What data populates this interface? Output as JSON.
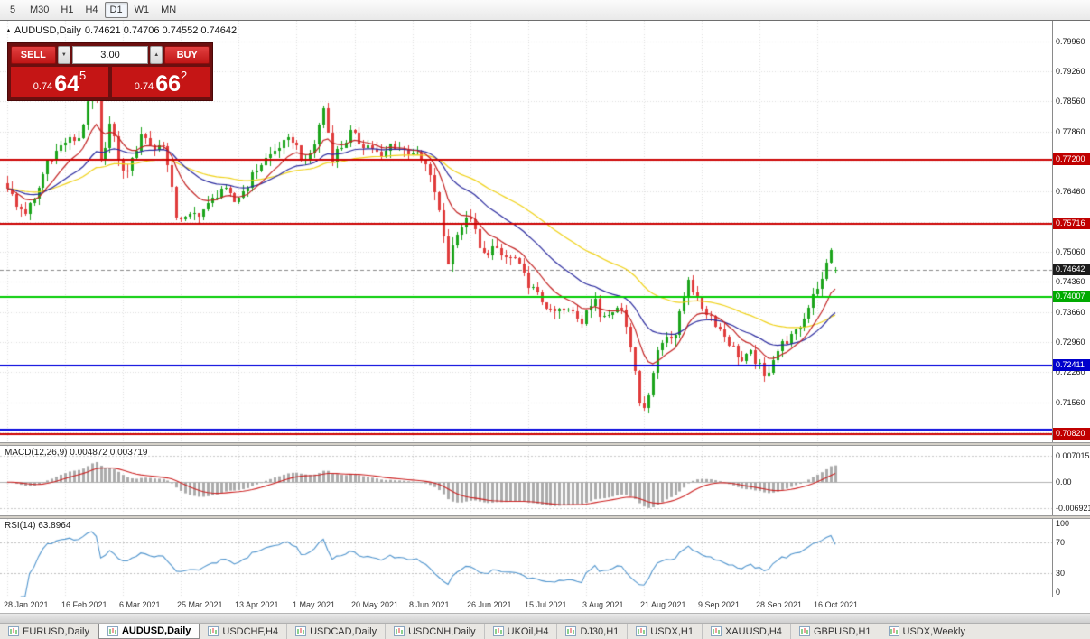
{
  "toolbar": {
    "timeframes": [
      {
        "label": "5",
        "active": false
      },
      {
        "label": "M30",
        "active": false
      },
      {
        "label": "H1",
        "active": false
      },
      {
        "label": "H4",
        "active": false
      },
      {
        "label": "D1",
        "active": true
      },
      {
        "label": "W1",
        "active": false
      },
      {
        "label": "MN",
        "active": false
      }
    ]
  },
  "icons": {
    "expand_triangle": "▲",
    "spinner_up": "▲",
    "spinner_down": "▼"
  },
  "chart_header": {
    "symbol": "AUDUSD,Daily",
    "ohlc": "0.74621 0.74706 0.74552 0.74642"
  },
  "trade_panel": {
    "sell_label": "SELL",
    "buy_label": "BUY",
    "volume": "3.00",
    "sell_price": {
      "small": "0.74",
      "big": "64",
      "sup": "5"
    },
    "buy_price": {
      "small": "0.74",
      "big": "66",
      "sup": "2"
    }
  },
  "price_scale": [
    "0.79960",
    "0.79260",
    "0.78560",
    "0.77860",
    "0.77160",
    "0.76460",
    "0.75760",
    "0.75060",
    "0.74360",
    "0.73660",
    "0.72960",
    "0.72260",
    "0.71560",
    "0.70860"
  ],
  "price_badges": [
    {
      "label": "0.77200",
      "value": 0.772,
      "color": "#c00000"
    },
    {
      "label": "0.75716",
      "value": 0.75716,
      "color": "#c00000"
    },
    {
      "label": "0.74642",
      "value": 0.74642,
      "color": "#1c1c1c"
    },
    {
      "label": "0.74007",
      "value": 0.74007,
      "color": "#00aa00"
    },
    {
      "label": "0.72411",
      "value": 0.72411,
      "color": "#0000cc"
    },
    {
      "label": "0.70820",
      "value": 0.7082,
      "color": "#c00000"
    }
  ],
  "macd": {
    "label": "MACD(12,26,9) 0.004872 0.003719",
    "scale": [
      {
        "label": "0.0070155",
        "value": 0.0070155
      },
      {
        "label": "0.00",
        "value": 0
      },
      {
        "label": "-0.0069210",
        "value": -0.006921
      }
    ]
  },
  "rsi": {
    "label": "RSI(14) 63.8964",
    "scale": [
      {
        "label": "100",
        "value": 100
      },
      {
        "label": "70",
        "value": 70
      },
      {
        "label": "30",
        "value": 30
      },
      {
        "label": "0",
        "value": 0
      }
    ]
  },
  "tabs": [
    {
      "label": "EURUSD,Daily",
      "active": false
    },
    {
      "label": "AUDUSD,Daily",
      "active": true
    },
    {
      "label": "USDCHF,H4",
      "active": false
    },
    {
      "label": "USDCAD,Daily",
      "active": false
    },
    {
      "label": "USDCNH,Daily",
      "active": false
    },
    {
      "label": "UKOil,H4",
      "active": false
    },
    {
      "label": "DJ30,H1",
      "active": false
    },
    {
      "label": "USDX,H1",
      "active": false
    },
    {
      "label": "XAUUSD,H4",
      "active": false
    },
    {
      "label": "GBPUSD,H1",
      "active": false
    },
    {
      "label": "USDX,Weekly",
      "active": false
    }
  ],
  "chart_data": {
    "type": "candlestick",
    "symbol": "AUDUSD",
    "timeframe": "Daily",
    "ohlc_current": {
      "open": 0.74621,
      "high": 0.74706,
      "low": 0.74552,
      "close": 0.74642
    },
    "y_range": [
      0.7063,
      0.8044
    ],
    "x_labels": [
      "28 Jan 2021",
      "16 Feb 2021",
      "6 Mar 2021",
      "25 Mar 2021",
      "13 Apr 2021",
      "1 May 2021",
      "20 May 2021",
      "8 Jun 2021",
      "26 Jun 2021",
      "15 Jul 2021",
      "3 Aug 2021",
      "21 Aug 2021",
      "9 Sep 2021",
      "28 Sep 2021",
      "16 Oct 2021"
    ],
    "bars_per_label": 13,
    "total_bars": 187,
    "first_bar_x": 8,
    "bar_step": 4.93,
    "close_anchors": [
      [
        0,
        0.766
      ],
      [
        2,
        0.761
      ],
      [
        4,
        0.76
      ],
      [
        6,
        0.7625
      ],
      [
        9,
        0.7718
      ],
      [
        13,
        0.7762
      ],
      [
        16,
        0.7772
      ],
      [
        19,
        0.7882
      ],
      [
        20,
        0.7858
      ],
      [
        21,
        0.7712
      ],
      [
        23,
        0.7802
      ],
      [
        26,
        0.769
      ],
      [
        28,
        0.7715
      ],
      [
        30,
        0.7782
      ],
      [
        33,
        0.7745
      ],
      [
        35,
        0.776
      ],
      [
        38,
        0.7592
      ],
      [
        40,
        0.7582
      ],
      [
        43,
        0.7598
      ],
      [
        45,
        0.7612
      ],
      [
        48,
        0.7655
      ],
      [
        51,
        0.7622
      ],
      [
        53,
        0.7648
      ],
      [
        56,
        0.77
      ],
      [
        58,
        0.7722
      ],
      [
        61,
        0.7752
      ],
      [
        64,
        0.7768
      ],
      [
        67,
        0.7712
      ],
      [
        69,
        0.7758
      ],
      [
        71,
        0.7842
      ],
      [
        73,
        0.7728
      ],
      [
        75,
        0.7752
      ],
      [
        77,
        0.7782
      ],
      [
        79,
        0.7762
      ],
      [
        82,
        0.7748
      ],
      [
        84,
        0.7722
      ],
      [
        86,
        0.7756
      ],
      [
        89,
        0.7742
      ],
      [
        91,
        0.774
      ],
      [
        94,
        0.7706
      ],
      [
        96,
        0.7648
      ],
      [
        98,
        0.7542
      ],
      [
        99,
        0.7482
      ],
      [
        101,
        0.7556
      ],
      [
        104,
        0.7588
      ],
      [
        106,
        0.7512
      ],
      [
        107,
        0.7498
      ],
      [
        109,
        0.7516
      ],
      [
        111,
        0.7496
      ],
      [
        114,
        0.7488
      ],
      [
        116,
        0.7448
      ],
      [
        119,
        0.7402
      ],
      [
        121,
        0.7382
      ],
      [
        122,
        0.7362
      ],
      [
        124,
        0.7368
      ],
      [
        127,
        0.7366
      ],
      [
        129,
        0.7346
      ],
      [
        130,
        0.7378
      ],
      [
        132,
        0.7388
      ],
      [
        133,
        0.7356
      ],
      [
        136,
        0.7376
      ],
      [
        138,
        0.7372
      ],
      [
        139,
        0.7336
      ],
      [
        141,
        0.7238
      ],
      [
        142,
        0.7162
      ],
      [
        143,
        0.7132
      ],
      [
        145,
        0.7232
      ],
      [
        146,
        0.7276
      ],
      [
        148,
        0.7312
      ],
      [
        150,
        0.7316
      ],
      [
        152,
        0.7402
      ],
      [
        153,
        0.7448
      ],
      [
        155,
        0.7388
      ],
      [
        158,
        0.7356
      ],
      [
        160,
        0.7326
      ],
      [
        162,
        0.7296
      ],
      [
        165,
        0.7252
      ],
      [
        167,
        0.7268
      ],
      [
        169,
        0.7238
      ],
      [
        170,
        0.7212
      ],
      [
        171,
        0.7232
      ],
      [
        172,
        0.7262
      ],
      [
        174,
        0.7292
      ],
      [
        177,
        0.7316
      ],
      [
        179,
        0.7352
      ],
      [
        181,
        0.7412
      ],
      [
        183,
        0.7438
      ],
      [
        185,
        0.7516
      ],
      [
        186,
        0.7464
      ]
    ],
    "levels": [
      {
        "price": 0.772,
        "color": "#cc0000",
        "width": 2
      },
      {
        "price": 0.75716,
        "color": "#cc0000",
        "width": 2
      },
      {
        "price": 0.74007,
        "color": "#00cc00",
        "width": 2
      },
      {
        "price": 0.72411,
        "color": "#0000dd",
        "width": 2
      },
      {
        "price": 0.7093,
        "color": "#0000dd",
        "width": 2
      },
      {
        "price": 0.7082,
        "color": "#cc0000",
        "width": 2
      }
    ],
    "moving_averages": [
      {
        "period": 50,
        "color": "#efd117"
      },
      {
        "period": 25,
        "color": "#2a2a9e"
      },
      {
        "period": 10,
        "color": "#c22020"
      }
    ],
    "candle_colors": {
      "up": "#1ca41c",
      "down": "#e03c3c"
    },
    "macd_config": {
      "fast": 12,
      "slow": 26,
      "signal": 9,
      "main_value": 0.004872,
      "signal_value": 0.003719,
      "display_range": [
        -0.00885,
        0.00966
      ],
      "histogram_color": "#ababab",
      "signal_color": "#cc2222"
    },
    "rsi_config": {
      "period": 14,
      "value": 63.8964,
      "line_color": "#4f94cd",
      "level_lines": [
        70,
        30
      ]
    }
  }
}
